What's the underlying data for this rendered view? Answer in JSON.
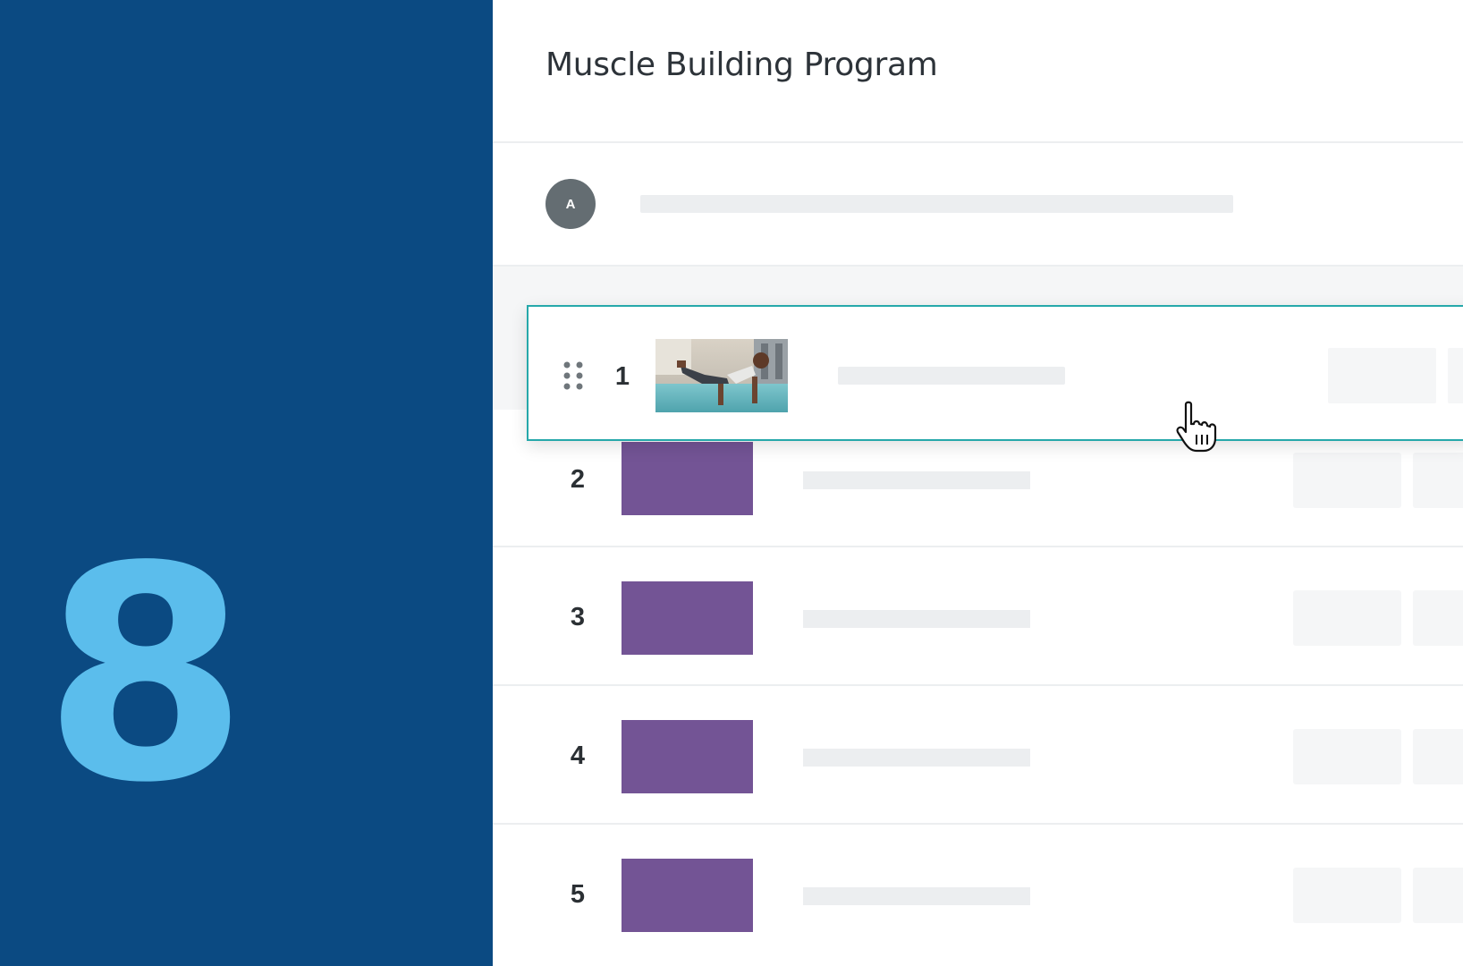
{
  "step": {
    "number": "8"
  },
  "header": {
    "title": "Muscle Building Program"
  },
  "user": {
    "avatar_initial": "A"
  },
  "dragged_item": {
    "number": "1",
    "thumbnail": "push-up-exercise-photo"
  },
  "items": [
    {
      "number": "2"
    },
    {
      "number": "3"
    },
    {
      "number": "4"
    },
    {
      "number": "5"
    }
  ],
  "colors": {
    "left_panel": "#0b4a82",
    "step_number": "#5bbdec",
    "accent_border": "#26a8aa",
    "thumbnail_placeholder": "#735495"
  },
  "icons": {
    "drag": "drag-handle-icon",
    "cursor": "hand-pointer-icon"
  }
}
